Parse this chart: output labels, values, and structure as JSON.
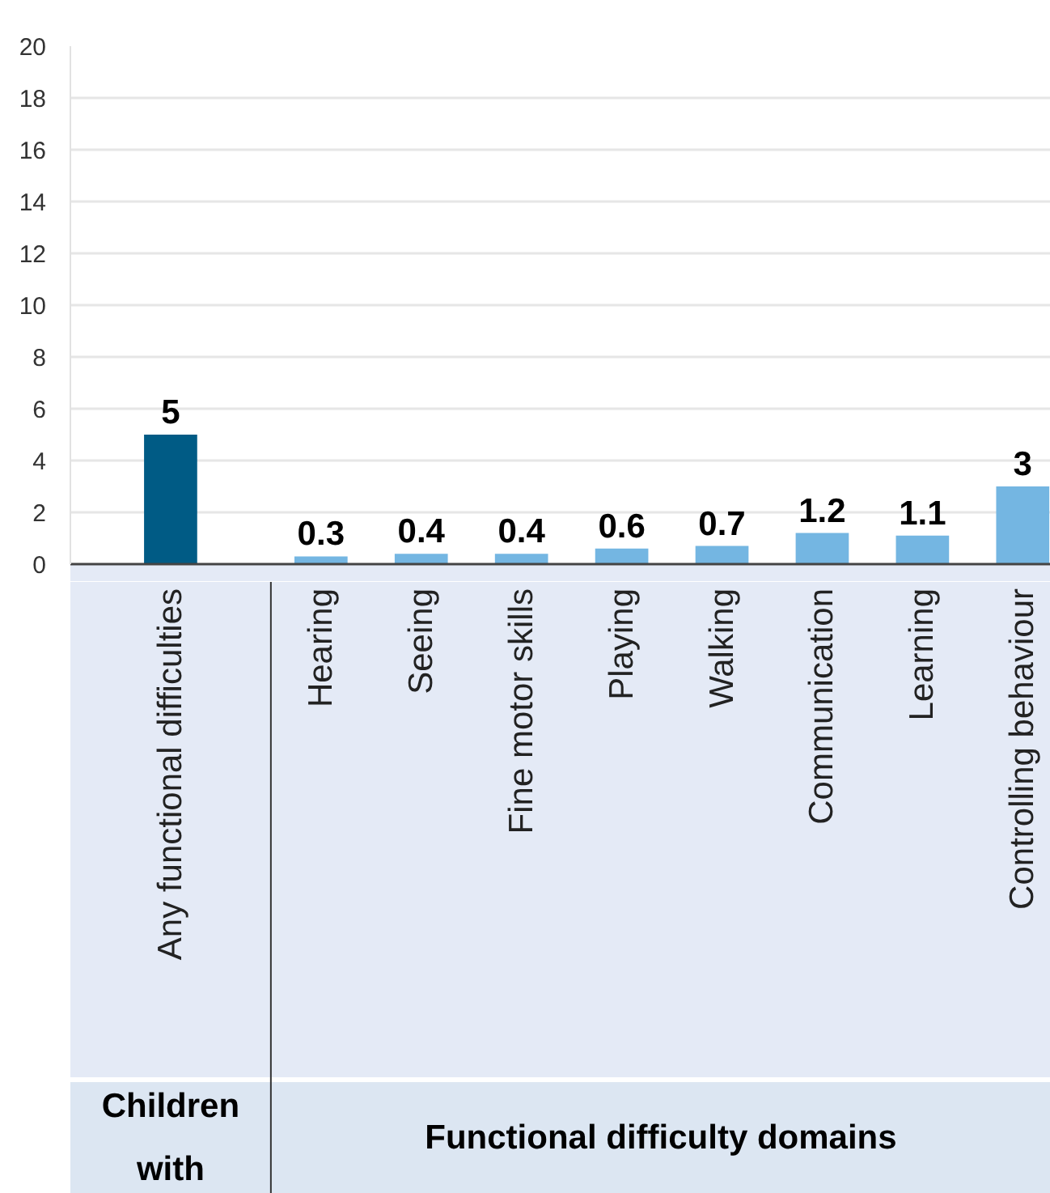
{
  "chart_data": {
    "type": "bar",
    "categories": [
      "Any functional difficulties",
      "Hearing",
      "Seeing",
      "Fine motor skills",
      "Playing",
      "Walking",
      "Communication",
      "Learning",
      "Controlling behaviour"
    ],
    "values": [
      5,
      0.3,
      0.4,
      0.4,
      0.6,
      0.7,
      1.2,
      1.1,
      3
    ],
    "colors": [
      "#005b85",
      "#74b6e2",
      "#74b6e2",
      "#74b6e2",
      "#74b6e2",
      "#74b6e2",
      "#74b6e2",
      "#74b6e2",
      "#74b6e2"
    ],
    "ylim": [
      0,
      20
    ],
    "yticks": [
      0,
      2,
      4,
      6,
      8,
      10,
      12,
      14,
      16,
      18,
      20
    ],
    "grid": "y",
    "data_labels": true,
    "annotations": [
      "Children with",
      "Functional difficulty domains"
    ]
  }
}
